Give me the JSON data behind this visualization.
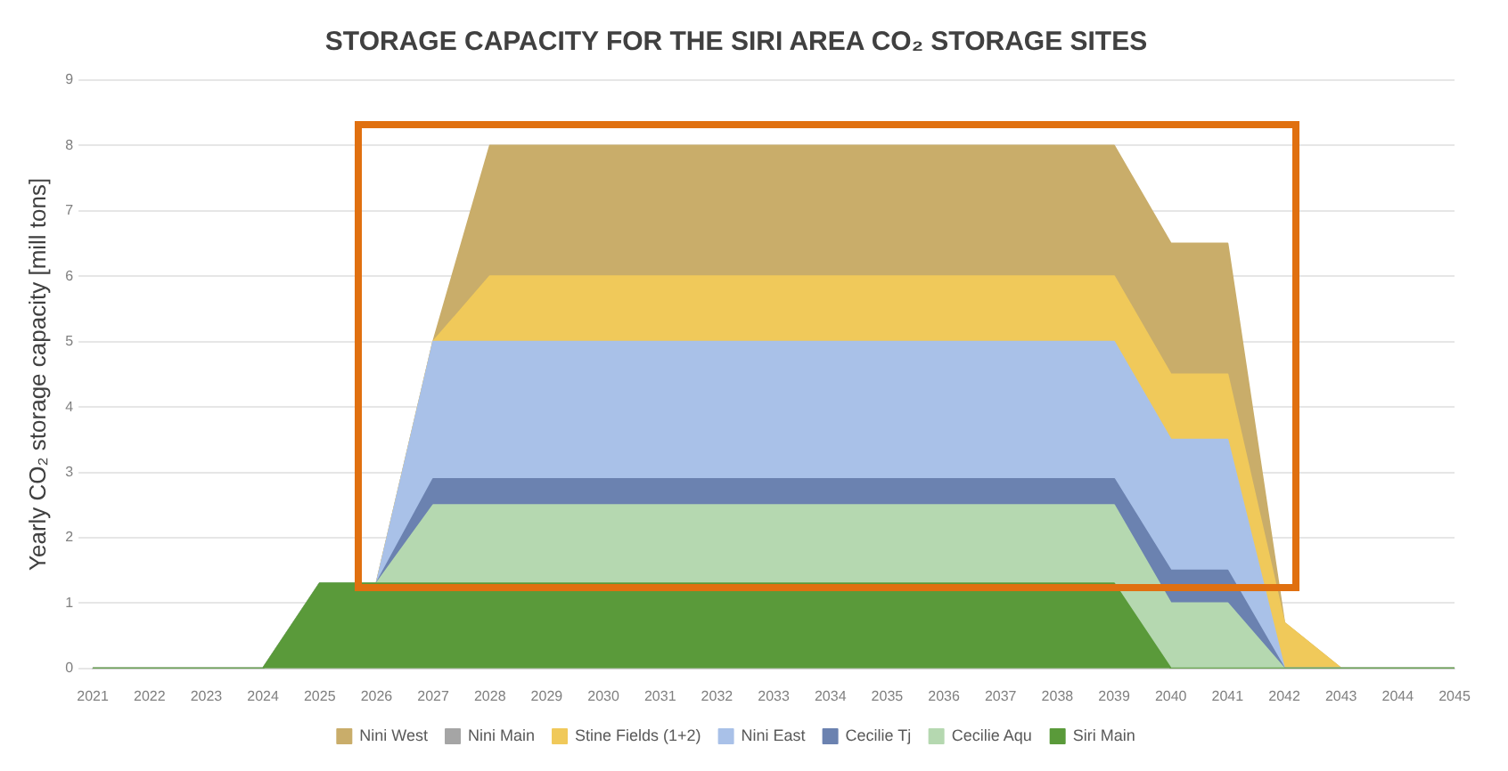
{
  "chart_data": {
    "type": "area",
    "title": "STORAGE CAPACITY FOR THE SIRI AREA CO₂ STORAGE SITES",
    "ylabel": "Yearly CO₂ storage capacity [mill tons]",
    "categories": [
      "2021",
      "2022",
      "2023",
      "2024",
      "2025",
      "2026",
      "2027",
      "2028",
      "2029",
      "2030",
      "2031",
      "2032",
      "2033",
      "2034",
      "2035",
      "2036",
      "2037",
      "2038",
      "2039",
      "2040",
      "2041",
      "2042",
      "2043",
      "2044",
      "2045"
    ],
    "stacked": true,
    "ylim": [
      0,
      9
    ],
    "yticks": [
      0,
      1,
      2,
      3,
      4,
      5,
      6,
      7,
      8,
      9
    ],
    "grid": "y",
    "legend": "bottom",
    "marker": "none",
    "series": [
      {
        "name": "Siri Main",
        "color": "#5a9a3a",
        "values": [
          0,
          0,
          0,
          0,
          1.3,
          1.3,
          1.3,
          1.3,
          1.3,
          1.3,
          1.3,
          1.3,
          1.3,
          1.3,
          1.3,
          1.3,
          1.3,
          1.3,
          1.3,
          0,
          0,
          0,
          0,
          0,
          0
        ]
      },
      {
        "name": "Cecilie Aqu",
        "color": "#b5d8b0",
        "values": [
          0,
          0,
          0,
          0,
          0,
          0,
          1.2,
          1.2,
          1.2,
          1.2,
          1.2,
          1.2,
          1.2,
          1.2,
          1.2,
          1.2,
          1.2,
          1.2,
          1.2,
          1,
          1,
          0,
          0,
          0,
          0
        ]
      },
      {
        "name": "Cecilie Tj",
        "color": "#6b82b0",
        "values": [
          0,
          0,
          0,
          0,
          0,
          0,
          0.4,
          0.4,
          0.4,
          0.4,
          0.4,
          0.4,
          0.4,
          0.4,
          0.4,
          0.4,
          0.4,
          0.4,
          0.4,
          0.5,
          0.5,
          0,
          0,
          0,
          0
        ]
      },
      {
        "name": "Nini East",
        "color": "#a9c1e8",
        "values": [
          0,
          0,
          0,
          0,
          0,
          0,
          2.1,
          2.1,
          2.1,
          2.1,
          2.1,
          2.1,
          2.1,
          2.1,
          2.1,
          2.1,
          2.1,
          2.1,
          2.1,
          2,
          2,
          0,
          0,
          0,
          0
        ]
      },
      {
        "name": "Stine Fields (1+2)",
        "color": "#f0c95a",
        "values": [
          0,
          0,
          0,
          0,
          0,
          0,
          0,
          1,
          1,
          1,
          1,
          1,
          1,
          1,
          1,
          1,
          1,
          1,
          1,
          1,
          1,
          0.7,
          0,
          0,
          0
        ]
      },
      {
        "name": "Nini Main",
        "color": "#a5a5a5",
        "values": [
          null,
          null,
          null,
          null,
          null,
          null,
          null,
          null,
          null,
          null,
          null,
          null,
          null,
          null,
          null,
          null,
          null,
          null,
          null,
          null,
          null,
          null,
          null,
          null,
          null
        ]
      },
      {
        "name": "Nini West",
        "color": "#c9ad6a",
        "values": [
          0,
          0,
          0,
          0,
          0,
          0,
          0,
          2,
          2,
          2,
          2,
          2,
          2,
          2,
          2,
          2,
          2,
          2,
          2,
          2,
          2,
          0,
          0,
          0,
          0
        ]
      }
    ]
  }
}
